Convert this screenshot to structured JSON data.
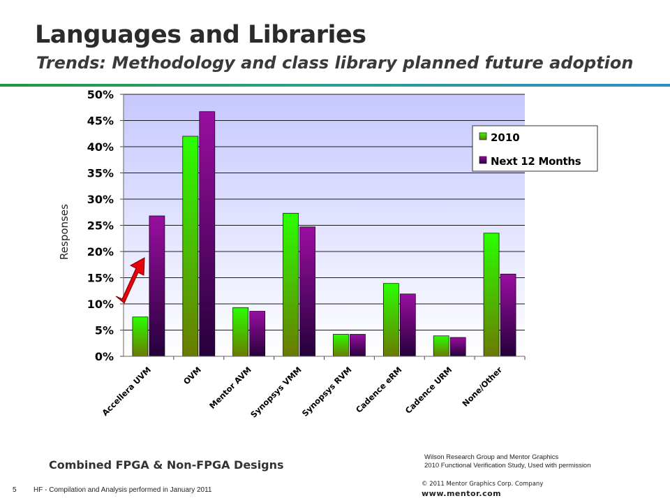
{
  "slide": {
    "title": "Languages and Libraries",
    "subtitle": "Trends: Methodology and class library planned future adoption",
    "footer_label": "Combined FPGA & Non-FPGA Designs",
    "source_line1": "Wilson Research Group and Mentor Graphics",
    "source_line2": "2010 Functional Verification Study,  Used with permission",
    "page_number": "5",
    "footnote": "HF - Compilation and Analysis performed in January 2011",
    "copyright": "© 2011 Mentor Graphics Corp. Company",
    "website": "www.mentor.com"
  },
  "colors": {
    "series_2010_top": "#2bff00",
    "series_2010_bottom": "#6b7a00",
    "series_next_top": "#9a0ea0",
    "series_next_bottom": "#25003a",
    "plot_bg_top": "#c6c8ff",
    "plot_bg_bottom": "#ffffff",
    "arrow": "#e8000b",
    "rule_start": "#1f9a3c",
    "rule_end": "#2b8fc7"
  },
  "chart_data": {
    "type": "bar",
    "categories": [
      "Accellera UVM",
      "OVM",
      "Mentor AVM",
      "Synopsys VMM",
      "Synopsys RVM",
      "Cadence eRM",
      "Cadence URM",
      "None/Other"
    ],
    "series": [
      {
        "name": "2010",
        "values": [
          7.5,
          42.0,
          9.3,
          27.3,
          4.2,
          13.9,
          3.9,
          23.5
        ]
      },
      {
        "name": "Next 12 Months",
        "values": [
          26.8,
          46.7,
          8.6,
          24.7,
          4.2,
          11.9,
          3.6,
          15.7
        ]
      }
    ],
    "ylabel": "Responses",
    "xlabel": "",
    "ylim": [
      0,
      50
    ],
    "yticks": [
      "0%",
      "5%",
      "10%",
      "15%",
      "20%",
      "25%",
      "30%",
      "35%",
      "40%",
      "45%",
      "50%"
    ],
    "grid": true,
    "legend_position": "top-right",
    "annotation": "upward arrow next to Accellera UVM"
  }
}
